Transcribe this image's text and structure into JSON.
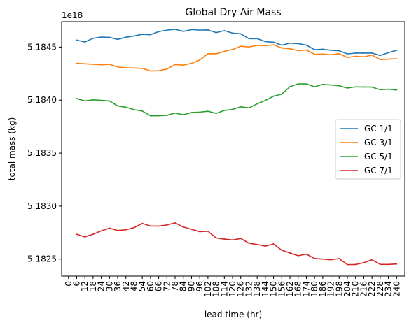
{
  "chart_data": {
    "type": "line",
    "title": "Global Dry Air Mass",
    "xlabel": "lead time (hr)",
    "ylabel": "total mass (kg)",
    "y_offset_label": "1e18",
    "y_offset_multiplier": 1e+18,
    "xlim": [
      -5,
      246
    ],
    "ylim": [
      5.18234,
      5.18474
    ],
    "x": [
      6,
      12,
      18,
      24,
      30,
      36,
      42,
      48,
      54,
      60,
      66,
      72,
      78,
      84,
      90,
      96,
      102,
      108,
      114,
      120,
      126,
      132,
      138,
      144,
      150,
      156,
      162,
      168,
      174,
      180,
      186,
      192,
      198,
      204,
      210,
      216,
      222,
      228,
      234,
      240
    ],
    "x_ticks": [
      "0",
      "6",
      "12",
      "18",
      "24",
      "30",
      "36",
      "42",
      "48",
      "54",
      "60",
      "66",
      "72",
      "78",
      "84",
      "90",
      "96",
      "102",
      "108",
      "114",
      "120",
      "126",
      "132",
      "138",
      "144",
      "150",
      "156",
      "162",
      "168",
      "174",
      "180",
      "186",
      "192",
      "198",
      "204",
      "210",
      "216",
      "222",
      "228",
      "234",
      "240"
    ],
    "y_ticks": [
      {
        "value": 5.1825,
        "label": "5.1825"
      },
      {
        "value": 5.183,
        "label": "5.1830"
      },
      {
        "value": 5.1835,
        "label": "5.1835"
      },
      {
        "value": 5.184,
        "label": "5.1840"
      },
      {
        "value": 5.1845,
        "label": "5.1845"
      }
    ],
    "grid": false,
    "legend_position": "center-right",
    "series": [
      {
        "name": "GC 1/1",
        "color": "#1f77b4",
        "values": [
          5.184566,
          5.184548,
          5.184583,
          5.184595,
          5.184592,
          5.184573,
          5.184593,
          5.184605,
          5.184621,
          5.184617,
          5.184646,
          5.18466,
          5.184668,
          5.184648,
          5.184665,
          5.18466,
          5.184662,
          5.184637,
          5.184655,
          5.184632,
          5.184625,
          5.18458,
          5.18458,
          5.184552,
          5.184546,
          5.184518,
          5.184538,
          5.184533,
          5.184519,
          5.184476,
          5.18448,
          5.18447,
          5.184466,
          5.184436,
          5.184444,
          5.184444,
          5.184444,
          5.184421,
          5.184448,
          5.18447
        ]
      },
      {
        "name": "GC 3/1",
        "color": "#ff7f0e",
        "values": [
          5.184347,
          5.184342,
          5.184338,
          5.184333,
          5.184338,
          5.184313,
          5.184305,
          5.184303,
          5.1843,
          5.184275,
          5.184277,
          5.184293,
          5.184335,
          5.18433,
          5.184347,
          5.184378,
          5.184438,
          5.184437,
          5.18446,
          5.184478,
          5.184508,
          5.184501,
          5.184517,
          5.184513,
          5.184522,
          5.184491,
          5.184485,
          5.184467,
          5.184473,
          5.184432,
          5.184435,
          5.184428,
          5.184438,
          5.184402,
          5.184413,
          5.184408,
          5.184425,
          5.184383,
          5.184387,
          5.18439
        ]
      },
      {
        "name": "GC 5/1",
        "color": "#2ca02c",
        "values": [
          5.184015,
          5.183992,
          5.184003,
          5.183998,
          5.183992,
          5.183945,
          5.183933,
          5.18391,
          5.183897,
          5.183852,
          5.183853,
          5.183857,
          5.183878,
          5.183862,
          5.183883,
          5.183887,
          5.183895,
          5.183875,
          5.183903,
          5.183912,
          5.183937,
          5.183927,
          5.183965,
          5.183997,
          5.184037,
          5.184056,
          5.184127,
          5.184153,
          5.184153,
          5.184125,
          5.184148,
          5.184143,
          5.184135,
          5.184114,
          5.184125,
          5.184124,
          5.184123,
          5.184098,
          5.184103,
          5.184095
        ]
      },
      {
        "name": "GC 7/1",
        "color": "#d62728",
        "values": [
          5.182735,
          5.182709,
          5.182735,
          5.182767,
          5.182792,
          5.18277,
          5.182777,
          5.182797,
          5.182837,
          5.182812,
          5.182812,
          5.182822,
          5.182842,
          5.182803,
          5.182782,
          5.182759,
          5.182763,
          5.1827,
          5.182689,
          5.182681,
          5.182695,
          5.18265,
          5.182638,
          5.182623,
          5.182643,
          5.182584,
          5.182558,
          5.182532,
          5.182547,
          5.182506,
          5.1825,
          5.182494,
          5.182505,
          5.182448,
          5.182449,
          5.182466,
          5.182494,
          5.182451,
          5.18245,
          5.182454
        ]
      }
    ]
  }
}
